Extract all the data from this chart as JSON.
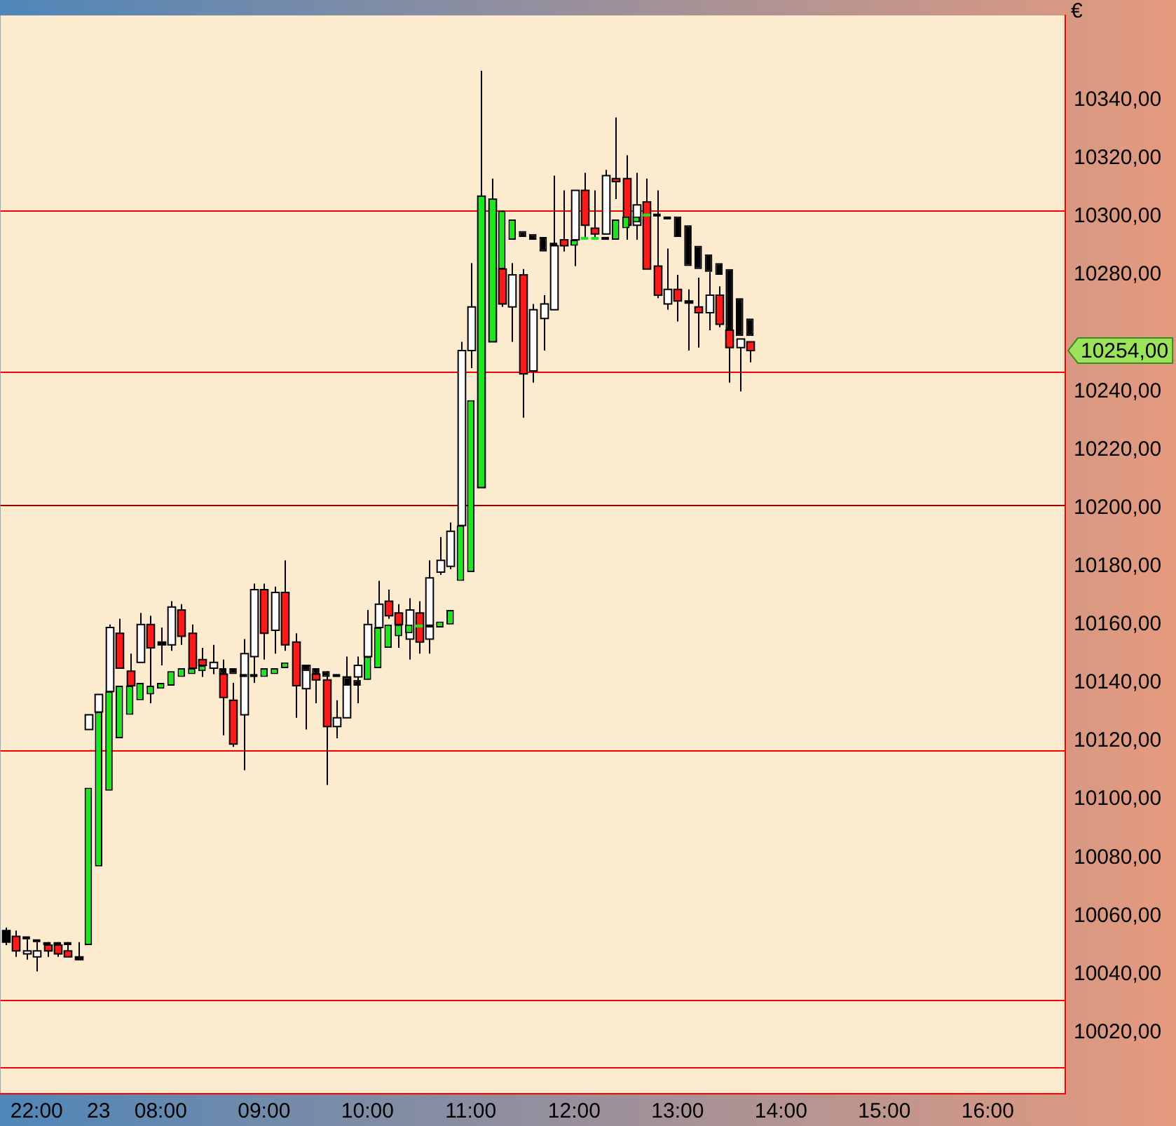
{
  "chart_data": {
    "type": "candlestick",
    "ylabel": "€",
    "categories": [
      null,
      null,
      null,
      "22:00",
      null,
      null,
      null,
      null,
      null,
      "23",
      null,
      null,
      null,
      null,
      null,
      "08:00",
      null,
      null,
      null,
      null,
      null,
      null,
      null,
      null,
      null,
      "09:00",
      null,
      null,
      null,
      null,
      null,
      null,
      null,
      null,
      null,
      "10:00",
      null,
      null,
      null,
      null,
      null,
      null,
      null,
      null,
      null,
      "11:00",
      null,
      null,
      null,
      null,
      null,
      null,
      null,
      null,
      null,
      "12:00",
      null,
      null,
      null,
      null,
      null,
      null,
      null,
      null,
      null,
      "13:00",
      null,
      null,
      null,
      null,
      null,
      null,
      null,
      null,
      null,
      "14:00",
      null,
      null,
      null,
      null,
      null,
      null,
      null,
      null,
      null,
      "15:00",
      null,
      null,
      null,
      null,
      null,
      null,
      null,
      null,
      null,
      "16:00",
      null,
      null,
      null,
      null,
      null,
      null,
      null
    ],
    "ohlc": [
      [
        10055,
        10056,
        10050,
        10051
      ],
      [
        10053,
        10055,
        10046,
        10048
      ],
      [
        10047,
        10052,
        10045,
        10048
      ],
      [
        10046,
        10051,
        10041,
        10048
      ],
      [
        10050,
        10051,
        10046,
        10048
      ],
      [
        10050,
        10051,
        10046,
        10047
      ],
      [
        10048,
        10051,
        10046,
        10046
      ],
      [
        10046,
        10051,
        10045,
        10045
      ],
      [
        10124,
        10129,
        10124,
        10129
      ],
      [
        10130,
        10136,
        10130,
        10136
      ],
      [
        10137,
        10160,
        10137,
        10159
      ],
      [
        10157,
        10162,
        10145,
        10145
      ],
      [
        10144,
        10150,
        10139,
        10139
      ],
      [
        10147,
        10164,
        10147,
        10160
      ],
      [
        10160,
        10163,
        10133,
        10152
      ],
      [
        10154,
        10159,
        10146,
        10153
      ],
      [
        10153,
        10168,
        10151,
        10166
      ],
      [
        10165,
        10167,
        10153,
        10156
      ],
      [
        10157,
        10160,
        10145,
        10145
      ],
      [
        10148,
        10152,
        10142,
        10146
      ],
      [
        10145,
        10153,
        10143,
        10147
      ],
      [
        10143,
        10148,
        10122,
        10135
      ],
      [
        10134,
        10140,
        10118,
        10119
      ],
      [
        10129,
        10155,
        10110,
        10150
      ],
      [
        10149,
        10174,
        10140,
        10172
      ],
      [
        10172,
        10174,
        10148,
        10157
      ],
      [
        10158,
        10173,
        10150,
        10171
      ],
      [
        10171,
        10182,
        10151,
        10153
      ],
      [
        10154,
        10157,
        10128,
        10139
      ],
      [
        10138,
        10146,
        10124,
        10146
      ],
      [
        10143,
        10145,
        10133,
        10141
      ],
      [
        10141,
        10144,
        10105,
        10125
      ],
      [
        10125,
        10134,
        10121,
        10128
      ],
      [
        10128,
        10149,
        10128,
        10142
      ],
      [
        10142,
        10149,
        10133,
        10146
      ],
      [
        10149,
        10165,
        10141,
        10160
      ],
      [
        10159,
        10175,
        10159,
        10167
      ],
      [
        10168,
        10172,
        10162,
        10163
      ],
      [
        10164,
        10167,
        10152,
        10160
      ],
      [
        10155,
        10169,
        10148,
        10165
      ],
      [
        10164,
        10168,
        10150,
        10154
      ],
      [
        10155,
        10182,
        10150,
        10176
      ],
      [
        10178,
        10190,
        10177,
        10182
      ],
      [
        10180,
        10195,
        10179,
        10192
      ],
      [
        10194,
        10257,
        10194,
        10254
      ],
      [
        10254,
        10284,
        10248,
        10269
      ],
      [
        10207,
        10350,
        10207,
        10307
      ],
      [
        10257,
        10313,
        10257,
        10306
      ],
      [
        10282,
        10302,
        10269,
        10270
      ],
      [
        10269,
        10284,
        10257,
        10280
      ],
      [
        10280,
        10282,
        10231,
        10246
      ],
      [
        10247,
        10270,
        10243,
        10268
      ],
      [
        10265,
        10273,
        10254,
        10270
      ],
      [
        10268,
        10314,
        10268,
        10290
      ],
      [
        10292,
        10309,
        10288,
        10290
      ],
      [
        10292,
        10309,
        10283,
        10309
      ],
      [
        10309,
        10315,
        10293,
        10297
      ],
      [
        10296,
        10309,
        10292,
        10294
      ],
      [
        10294,
        10316,
        10294,
        10314
      ],
      [
        10313,
        10334,
        10306,
        10312
      ],
      [
        10313,
        10321,
        10292,
        10297
      ],
      [
        10297,
        10315,
        10292,
        10304
      ],
      [
        10305,
        10313,
        10282,
        10282
      ],
      [
        10283,
        10309,
        10272,
        10273
      ],
      [
        10270,
        10289,
        10268,
        10275
      ],
      [
        10275,
        10280,
        10264,
        10271
      ],
      [
        10271,
        10275,
        10254,
        10271
      ],
      [
        10269,
        10279,
        10255,
        10267
      ],
      [
        10267,
        10281,
        10261,
        10273
      ],
      [
        10273,
        10276,
        10262,
        10263
      ],
      [
        10261,
        10261,
        10243,
        10255
      ],
      [
        10255,
        10258,
        10240,
        10258
      ],
      [
        10257,
        10257,
        10250,
        10254
      ],
      null,
      null,
      null,
      null,
      null,
      null,
      null,
      null,
      null,
      null,
      null,
      null,
      null,
      null,
      null,
      null,
      null,
      null,
      null,
      null,
      null,
      null,
      null,
      null,
      null,
      null,
      null,
      null,
      null,
      null
    ],
    "colors": [
      "#000000",
      "#ff1a1a",
      "#ffffff",
      "#ffffff",
      "#ff1a1a",
      "#ff1a1a",
      "#ff1a1a",
      "#000000",
      "#ffffff",
      "#ffffff",
      "#ffffff",
      "#ff1a1a",
      "#ff1a1a",
      "#ffffff",
      "#ff1a1a",
      "#000000",
      "#ffffff",
      "#ff1a1a",
      "#ff1a1a",
      "#ff1a1a",
      "#ffffff",
      "#ff1a1a",
      "#ff1a1a",
      "#ffffff",
      "#ffffff",
      "#ff1a1a",
      "#ffffff",
      "#ff1a1a",
      "#ff1a1a",
      "#ffffff",
      "#ff1a1a",
      "#ff1a1a",
      "#ffffff",
      "#ffffff",
      "#ffffff",
      "#ffffff",
      "#ffffff",
      "#ff1a1a",
      "#ff1a1a",
      "#ffffff",
      "#ff1a1a",
      "#ffffff",
      "#ffffff",
      "#ffffff",
      "#ffffff",
      "#ffffff",
      "#1ee61e",
      "#1ee61e",
      "#ff1a1a",
      "#ffffff",
      "#ff1a1a",
      "#ffffff",
      "#ffffff",
      "#ffffff",
      "#ff1a1a",
      "#ffffff",
      "#ff1a1a",
      "#ff1a1a",
      "#ffffff",
      "#ff1a1a",
      "#ff1a1a",
      "#ffffff",
      "#ff1a1a",
      "#ff1a1a",
      "#ffffff",
      "#ff1a1a",
      "#000000",
      "#ff1a1a",
      "#ffffff",
      "#ff1a1a",
      "#ff1a1a",
      "#ffffff",
      "#ff1a1a",
      null,
      null,
      null,
      null,
      null,
      null,
      null,
      null,
      null,
      null,
      null,
      null,
      null,
      null,
      null,
      null,
      null,
      null,
      null,
      null,
      null,
      null,
      null,
      null,
      null,
      null,
      null,
      null,
      null,
      null
    ],
    "series": [
      {
        "type": "bar",
        "color": "#1ee61e",
        "base": [
          null,
          null,
          null,
          null,
          null,
          null,
          null,
          null,
          10050,
          10077,
          10103,
          10121,
          10129,
          10134,
          10136,
          10138,
          10139,
          10142,
          10143,
          10144,
          null,
          null,
          null,
          null,
          null,
          10142,
          10143,
          10145,
          null,
          null,
          null,
          null,
          null,
          null,
          null,
          10141,
          10145,
          10152,
          10156,
          10157,
          10159,
          null,
          10159,
          10160,
          10175,
          10178,
          null,
          null,
          10282,
          10292,
          null,
          null,
          null,
          null,
          null,
          10290,
          10292,
          10292,
          null,
          10292,
          10296,
          10298,
          10300,
          null,
          null,
          null,
          null,
          null,
          null,
          null,
          null,
          null,
          null,
          null,
          null,
          null,
          null,
          null,
          null,
          null,
          null,
          null,
          null,
          null,
          null,
          null,
          null,
          null,
          null,
          null,
          null,
          null,
          null,
          null,
          null,
          null,
          null,
          null,
          null,
          null,
          null,
          null,
          null
        ],
        "values": [
          null,
          null,
          null,
          null,
          null,
          null,
          null,
          null,
          54,
          53,
          34,
          18,
          10,
          6,
          3,
          2,
          5,
          3,
          2,
          2,
          null,
          null,
          null,
          null,
          null,
          3,
          2,
          2,
          null,
          null,
          null,
          null,
          null,
          null,
          null,
          8,
          14,
          8,
          4,
          3,
          1,
          null,
          2,
          5,
          19,
          59,
          null,
          null,
          20,
          7,
          null,
          null,
          null,
          null,
          null,
          2,
          1,
          1,
          null,
          7,
          4,
          2,
          1,
          null,
          null,
          null,
          null,
          null,
          null,
          null,
          null,
          null,
          null,
          null,
          null,
          null,
          null,
          null,
          null,
          null,
          null,
          null,
          null,
          null,
          null,
          null,
          null,
          null,
          null,
          null,
          null,
          null,
          null,
          null,
          null,
          null,
          null,
          null,
          null,
          null,
          null,
          null,
          null
        ]
      },
      {
        "type": "bar",
        "color": "#000000",
        "base": [
          null,
          null,
          10052,
          10051,
          10050,
          10050,
          10050,
          null,
          null,
          null,
          null,
          null,
          null,
          null,
          null,
          null,
          null,
          null,
          null,
          null,
          null,
          10143,
          10143,
          10142,
          10142,
          null,
          null,
          null,
          null,
          10144,
          10143,
          10142,
          10142,
          10139,
          10139,
          null,
          null,
          null,
          null,
          null,
          null,
          10159,
          null,
          null,
          null,
          null,
          null,
          null,
          null,
          null,
          10293,
          10292,
          10288,
          10290,
          null,
          null,
          null,
          null,
          10292,
          null,
          null,
          null,
          null,
          10300,
          10299,
          10293,
          10283,
          10282,
          10281,
          10280,
          10261,
          10259,
          10259,
          null,
          null,
          null,
          null,
          null,
          null,
          null,
          null,
          null,
          null,
          null,
          null,
          null,
          null,
          null,
          null,
          null,
          null,
          null,
          null,
          null,
          null,
          null,
          null,
          null,
          null,
          null,
          null,
          null,
          null
        ],
        "values": [
          null,
          null,
          1,
          1,
          1,
          1,
          1,
          null,
          null,
          null,
          null,
          null,
          null,
          null,
          null,
          null,
          null,
          null,
          null,
          null,
          null,
          2,
          2,
          1,
          1,
          null,
          null,
          null,
          null,
          2,
          2,
          2,
          1,
          3,
          2,
          null,
          null,
          null,
          null,
          null,
          null,
          1,
          null,
          null,
          null,
          null,
          null,
          null,
          null,
          null,
          2,
          2,
          5,
          1,
          null,
          null,
          null,
          null,
          1,
          null,
          null,
          null,
          null,
          1,
          1,
          7,
          14,
          8,
          6,
          4,
          21,
          13,
          6,
          null,
          null,
          null,
          null,
          null,
          null,
          null,
          null,
          null,
          null,
          null,
          null,
          null,
          null,
          null,
          null,
          null,
          null,
          null,
          null,
          null,
          null,
          null,
          null,
          null,
          null,
          null,
          null,
          null,
          null
        ]
      }
    ],
    "ylim": [
      9999,
      10369
    ],
    "yticks": [
      {
        "value": 10020,
        "label": "10020,00"
      },
      {
        "value": 10040,
        "label": "10040,00"
      },
      {
        "value": 10060,
        "label": "10060,00"
      },
      {
        "value": 10080,
        "label": "10080,00"
      },
      {
        "value": 10100,
        "label": "10100,00"
      },
      {
        "value": 10120,
        "label": "10120,00"
      },
      {
        "value": 10140,
        "label": "10140,00"
      },
      {
        "value": 10160,
        "label": "10160,00"
      },
      {
        "value": 10180,
        "label": "10180,00"
      },
      {
        "value": 10200,
        "label": "10200,00"
      },
      {
        "value": 10220,
        "label": "10220,00"
      },
      {
        "value": 10240,
        "label": "10240,00"
      },
      {
        "value": 10280,
        "label": "10280,00"
      },
      {
        "value": 10300,
        "label": "10300,00"
      },
      {
        "value": 10320,
        "label": "10320,00"
      },
      {
        "value": 10340,
        "label": "10340,00"
      }
    ],
    "ref_lines": [
      {
        "axis": "y",
        "value": 10302,
        "color": "#ff0000"
      },
      {
        "axis": "y",
        "value": 10247,
        "color": "#ff0000"
      },
      {
        "axis": "y",
        "value": 10201,
        "color": "#a00000"
      },
      {
        "axis": "y",
        "value": 10117,
        "color": "#ff0000"
      },
      {
        "axis": "y",
        "value": 10031,
        "color": "#ff0000"
      },
      {
        "axis": "y",
        "value": 10008,
        "color": "#ff0000"
      }
    ],
    "annotations": [
      "10254,00"
    ]
  }
}
